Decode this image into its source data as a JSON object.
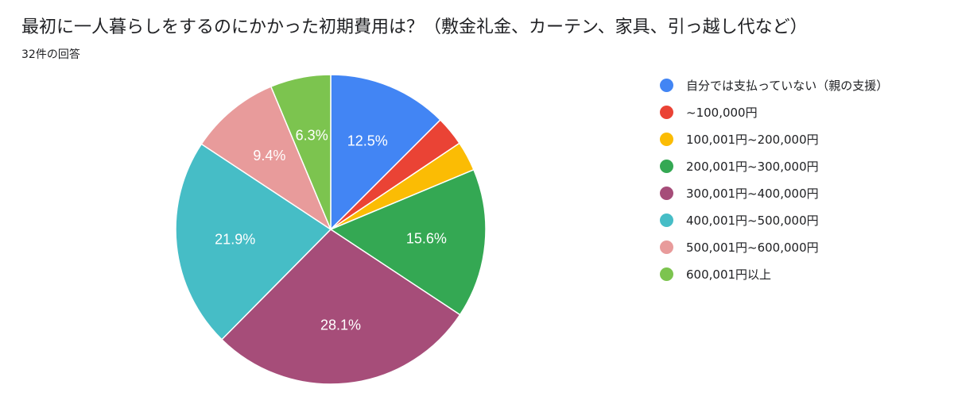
{
  "title": "最初に一人暮らしをするのにかかった初期費用は？（敷金礼金、カーテン、家具、引っ越し代など）",
  "subtitle": "32件の回答",
  "chart_data": {
    "type": "pie",
    "title": "最初に一人暮らしをするのにかかった初期費用は？（敷金礼金、カーテン、家具、引っ越し代など）",
    "total_responses": 32,
    "legend_position": "right",
    "slices": [
      {
        "label": "自分では支払っていない（親の支援）",
        "value": 12.5,
        "display": "12.5%",
        "color": "#4285f4"
      },
      {
        "label": "~100,000円",
        "value": 3.1,
        "display": "",
        "color": "#ea4335"
      },
      {
        "label": "100,001円~200,000円",
        "value": 3.1,
        "display": "",
        "color": "#fbbc04"
      },
      {
        "label": "200,001円~300,000円",
        "value": 15.6,
        "display": "15.6%",
        "color": "#34a853"
      },
      {
        "label": "300,001円~400,000円",
        "value": 28.1,
        "display": "28.1%",
        "color": "#a64d79"
      },
      {
        "label": "400,001円~500,000円",
        "value": 21.9,
        "display": "21.9%",
        "color": "#46bdc6"
      },
      {
        "label": "500,001円~600,000円",
        "value": 9.4,
        "display": "9.4%",
        "color": "#e89b9b"
      },
      {
        "label": "600,001円以上",
        "value": 6.3,
        "display": "6.3%",
        "color": "#7cc44f"
      }
    ]
  }
}
